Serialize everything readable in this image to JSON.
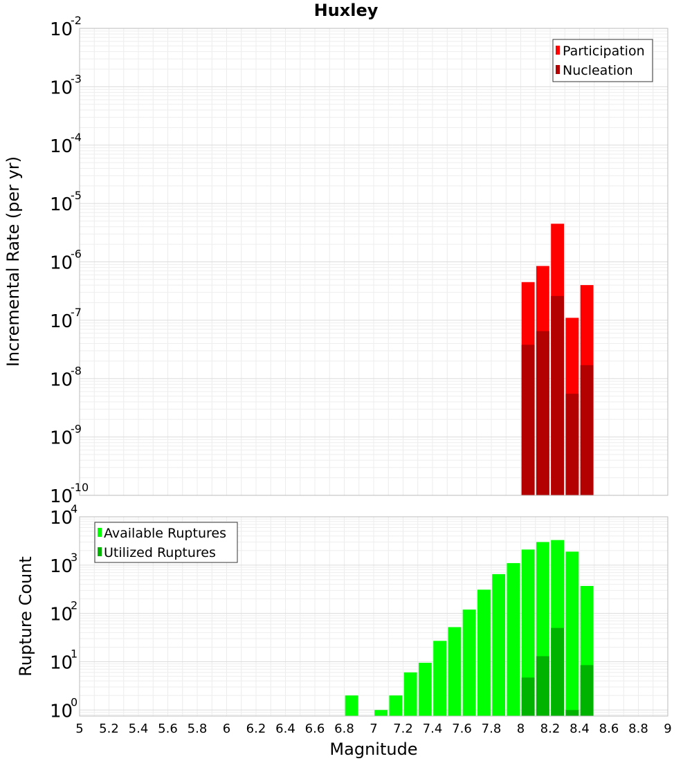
{
  "chart_data": [
    {
      "type": "bar",
      "title": "Huxley",
      "xlabel": "",
      "ylabel": "Incremental Rate (per yr)",
      "yscale": "log",
      "xlim": [
        5,
        9
      ],
      "ylim": [
        1e-10,
        0.01
      ],
      "ytick_exponents": [
        -10,
        -9,
        -8,
        -7,
        -6,
        -5,
        -4,
        -3,
        -2
      ],
      "bin_width": 0.1,
      "grid": true,
      "legend_position": "top-right",
      "colors": {
        "Participation": "#ff0000",
        "Nucleation": "#b30000"
      },
      "series": [
        {
          "name": "Participation",
          "x": [
            8.05,
            8.15,
            8.25,
            8.35,
            8.45
          ],
          "values": [
            4.5e-07,
            8.5e-07,
            4.5e-06,
            1.1e-07,
            4e-07
          ]
        },
        {
          "name": "Nucleation",
          "x": [
            8.05,
            8.15,
            8.25,
            8.35,
            8.45
          ],
          "values": [
            3.8e-08,
            6.5e-08,
            2.6e-07,
            5.5e-09,
            1.7e-08
          ]
        }
      ]
    },
    {
      "type": "bar",
      "title": "",
      "xlabel": "Magnitude",
      "ylabel": "Rupture Count",
      "yscale": "log",
      "xlim": [
        5,
        9
      ],
      "ylim": [
        0.75,
        10000
      ],
      "ytick_exponents": [
        0,
        1,
        2,
        3,
        4
      ],
      "xticks": [
        "5",
        "5.2",
        "5.4",
        "5.6",
        "5.8",
        "6",
        "6.2",
        "6.4",
        "6.6",
        "6.8",
        "7",
        "7.2",
        "7.4",
        "7.6",
        "7.8",
        "8",
        "8.2",
        "8.4",
        "8.6",
        "8.8",
        "9"
      ],
      "bin_width": 0.1,
      "grid": true,
      "legend_position": "top-left",
      "colors": {
        "Available Ruptures": "#00ff00",
        "Utilized Ruptures": "#00b300"
      },
      "series": [
        {
          "name": "Available Ruptures",
          "x": [
            6.85,
            7.05,
            7.15,
            7.25,
            7.35,
            7.45,
            7.55,
            7.65,
            7.75,
            7.85,
            7.95,
            8.05,
            8.15,
            8.25,
            8.35,
            8.45
          ],
          "values": [
            2,
            1,
            2,
            6,
            9.5,
            27,
            52,
            120,
            310,
            650,
            1100,
            2100,
            3000,
            3300,
            1900,
            370
          ]
        },
        {
          "name": "Utilized Ruptures",
          "x": [
            8.05,
            8.15,
            8.25,
            8.35,
            8.45
          ],
          "values": [
            4.7,
            13,
            50,
            1,
            8.5
          ]
        }
      ]
    }
  ]
}
